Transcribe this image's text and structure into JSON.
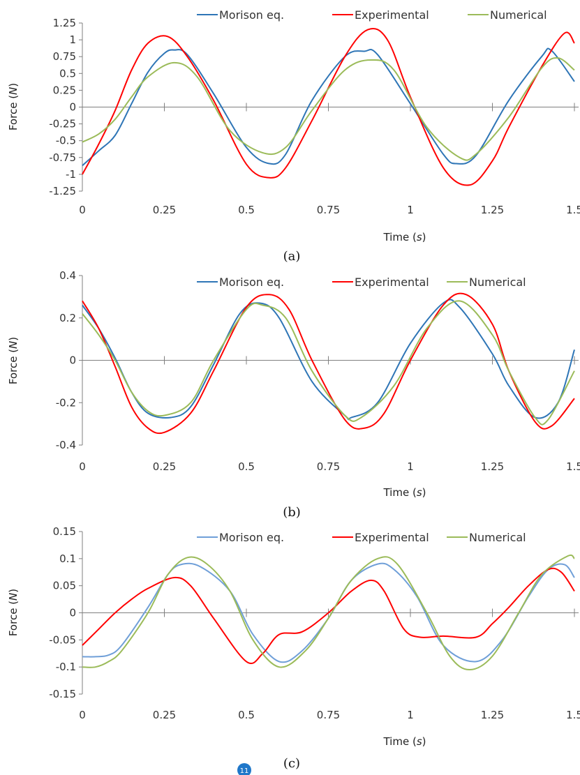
{
  "page_number": "11",
  "colors": {
    "morison": "#2e75b6",
    "experimental": "#ff0000",
    "numerical": "#9bbb59",
    "morison_light": "#6f9fd8",
    "axis": "#7f7f7f"
  },
  "chart_data": [
    {
      "type": "line",
      "caption": "(a)",
      "xlabel_main": "Time (",
      "xlabel_unit": "s",
      "xlabel_end": ")",
      "ylabel_main": "Force (",
      "ylabel_unit": "N",
      "ylabel_end": ")",
      "xlim": [
        0,
        1.5
      ],
      "ylim": [
        -1.25,
        1.25
      ],
      "legend_position": "top",
      "x_ticks": [
        "0",
        "0.25",
        "0.5",
        "0.75",
        "1",
        "1.25",
        "1.5"
      ],
      "y_ticks": [
        "1.25",
        "1",
        "0.75",
        "0.5",
        "0.25",
        "0",
        "-0.25",
        "-0.5",
        "-0.75",
        "-1",
        "-1.25"
      ],
      "series": [
        {
          "name": "Morison eq.",
          "color": "#2e75b6",
          "x": [
            0,
            0.05,
            0.1,
            0.15,
            0.2,
            0.25,
            0.28,
            0.32,
            0.4,
            0.5,
            0.57,
            0.62,
            0.7,
            0.8,
            0.86,
            0.9,
            1.0,
            1.1,
            1.14,
            1.2,
            1.3,
            1.4,
            1.43,
            1.5
          ],
          "values": [
            -0.87,
            -0.65,
            -0.42,
            0.05,
            0.52,
            0.8,
            0.85,
            0.78,
            0.2,
            -0.6,
            -0.84,
            -0.7,
            0.1,
            0.75,
            0.83,
            0.78,
            0.05,
            -0.7,
            -0.84,
            -0.72,
            0.1,
            0.75,
            0.84,
            0.38
          ]
        },
        {
          "name": "Experimental",
          "color": "#ff0000",
          "x": [
            0,
            0.05,
            0.1,
            0.15,
            0.2,
            0.26,
            0.32,
            0.4,
            0.5,
            0.57,
            0.62,
            0.7,
            0.8,
            0.87,
            0.93,
            1.0,
            1.1,
            1.18,
            1.25,
            1.3,
            1.4,
            1.47,
            1.5
          ],
          "values": [
            -1.0,
            -0.55,
            -0.05,
            0.55,
            0.95,
            1.05,
            0.75,
            0.1,
            -0.85,
            -1.05,
            -0.9,
            -0.2,
            0.75,
            1.15,
            1.0,
            0.15,
            -0.9,
            -1.16,
            -0.8,
            -0.3,
            0.6,
            1.1,
            0.95
          ]
        },
        {
          "name": "Numerical",
          "color": "#9bbb59",
          "x": [
            0,
            0.05,
            0.1,
            0.15,
            0.2,
            0.28,
            0.35,
            0.45,
            0.55,
            0.62,
            0.7,
            0.8,
            0.88,
            0.95,
            1.05,
            1.15,
            1.2,
            1.3,
            1.4,
            1.45,
            1.5
          ],
          "values": [
            -0.52,
            -0.4,
            -0.18,
            0.15,
            0.45,
            0.66,
            0.45,
            -0.35,
            -0.68,
            -0.6,
            -0.05,
            0.55,
            0.7,
            0.55,
            -0.3,
            -0.75,
            -0.7,
            -0.15,
            0.58,
            0.73,
            0.55
          ]
        }
      ]
    },
    {
      "type": "line",
      "caption": "(b)",
      "xlabel_main": "Time (",
      "xlabel_unit": "s",
      "xlabel_end": ")",
      "ylabel_main": "Force (",
      "ylabel_unit": "N",
      "ylabel_end": ")",
      "xlim": [
        0,
        1.5
      ],
      "ylim": [
        -0.4,
        0.4
      ],
      "legend_position": "top",
      "x_ticks": [
        "0",
        "0.25",
        "0.5",
        "0.75",
        "1",
        "1.25",
        "1.5"
      ],
      "y_ticks": [
        "0.4",
        "0.2",
        "0",
        "-0.2",
        "-0.4"
      ],
      "series": [
        {
          "name": "Morison eq.",
          "color": "#2e75b6",
          "x": [
            0,
            0.05,
            0.1,
            0.15,
            0.2,
            0.27,
            0.33,
            0.4,
            0.48,
            0.54,
            0.6,
            0.7,
            0.8,
            0.82,
            0.9,
            1.0,
            1.1,
            1.15,
            1.25,
            1.3,
            1.38,
            1.45,
            1.5
          ],
          "values": [
            0.26,
            0.15,
            0.01,
            -0.15,
            -0.25,
            -0.27,
            -0.22,
            -0.02,
            0.22,
            0.27,
            0.2,
            -0.1,
            -0.26,
            -0.27,
            -0.2,
            0.08,
            0.27,
            0.25,
            0.03,
            -0.12,
            -0.27,
            -0.2,
            0.05
          ]
        },
        {
          "name": "Experimental",
          "color": "#ff0000",
          "x": [
            0,
            0.05,
            0.1,
            0.15,
            0.2,
            0.25,
            0.33,
            0.4,
            0.5,
            0.57,
            0.63,
            0.7,
            0.8,
            0.86,
            0.92,
            1.0,
            1.1,
            1.17,
            1.25,
            1.3,
            1.38,
            1.43,
            1.5
          ],
          "values": [
            0.28,
            0.15,
            -0.03,
            -0.22,
            -0.32,
            -0.34,
            -0.25,
            -0.05,
            0.25,
            0.31,
            0.24,
            0.0,
            -0.28,
            -0.32,
            -0.25,
            0.0,
            0.26,
            0.31,
            0.17,
            -0.05,
            -0.29,
            -0.31,
            -0.18
          ]
        },
        {
          "name": "Numerical",
          "color": "#9bbb59",
          "x": [
            0,
            0.05,
            0.1,
            0.15,
            0.2,
            0.25,
            0.33,
            0.4,
            0.5,
            0.55,
            0.62,
            0.7,
            0.8,
            0.85,
            0.95,
            1.05,
            1.15,
            1.25,
            1.3,
            1.38,
            1.42,
            1.5
          ],
          "values": [
            0.22,
            0.12,
            0.0,
            -0.15,
            -0.24,
            -0.26,
            -0.2,
            0.0,
            0.24,
            0.26,
            0.2,
            -0.05,
            -0.26,
            -0.27,
            -0.12,
            0.15,
            0.28,
            0.12,
            -0.05,
            -0.27,
            -0.28,
            -0.05
          ]
        }
      ]
    },
    {
      "type": "line",
      "caption": "(c)",
      "xlabel_main": "Time (",
      "xlabel_unit": "s",
      "xlabel_end": ")",
      "ylabel_main": "Force (",
      "ylabel_unit": "N",
      "ylabel_end": ")",
      "xlim": [
        0,
        1.5
      ],
      "ylim": [
        -0.15,
        0.15
      ],
      "legend_position": "top",
      "x_ticks": [
        "0",
        "0.25",
        "0.5",
        "0.75",
        "1",
        "1.25",
        "1.5"
      ],
      "y_ticks": [
        "0.15",
        "0.1",
        "0.05",
        "0",
        "-0.05",
        "-0.1",
        "-0.15"
      ],
      "series": [
        {
          "name": "Morison eq.",
          "color": "#6f9fd8",
          "x": [
            0,
            0.04,
            0.08,
            0.12,
            0.2,
            0.26,
            0.3,
            0.36,
            0.45,
            0.52,
            0.6,
            0.67,
            0.75,
            0.82,
            0.9,
            0.95,
            1.02,
            1.1,
            1.2,
            1.28,
            1.36,
            1.42,
            1.47,
            1.5
          ],
          "values": [
            -0.081,
            -0.081,
            -0.078,
            -0.06,
            0.01,
            0.07,
            0.089,
            0.085,
            0.04,
            -0.04,
            -0.09,
            -0.07,
            -0.01,
            0.06,
            0.09,
            0.08,
            0.03,
            -0.06,
            -0.09,
            -0.05,
            0.03,
            0.08,
            0.089,
            0.065
          ]
        },
        {
          "name": "Experimental",
          "color": "#ff0000",
          "x": [
            0,
            0.05,
            0.1,
            0.15,
            0.2,
            0.28,
            0.33,
            0.4,
            0.5,
            0.55,
            0.6,
            0.67,
            0.75,
            0.82,
            0.88,
            0.92,
            0.98,
            1.03,
            1.1,
            1.2,
            1.25,
            1.3,
            1.36,
            1.42,
            1.46,
            1.5
          ],
          "values": [
            -0.06,
            -0.03,
            0.0,
            0.025,
            0.045,
            0.065,
            0.05,
            -0.01,
            -0.09,
            -0.075,
            -0.04,
            -0.035,
            0.0,
            0.04,
            0.06,
            0.04,
            -0.03,
            -0.045,
            -0.043,
            -0.045,
            -0.02,
            0.01,
            0.05,
            0.08,
            0.075,
            0.04
          ]
        },
        {
          "name": "Numerical",
          "color": "#9bbb59",
          "x": [
            0,
            0.04,
            0.08,
            0.12,
            0.2,
            0.26,
            0.32,
            0.38,
            0.45,
            0.52,
            0.6,
            0.68,
            0.75,
            0.82,
            0.9,
            0.96,
            1.05,
            1.12,
            1.18,
            1.25,
            1.33,
            1.4,
            1.48,
            1.5
          ],
          "values": [
            -0.1,
            -0.1,
            -0.09,
            -0.07,
            0.0,
            0.07,
            0.102,
            0.09,
            0.04,
            -0.05,
            -0.1,
            -0.07,
            -0.01,
            0.06,
            0.1,
            0.09,
            0.0,
            -0.08,
            -0.105,
            -0.08,
            0.0,
            0.07,
            0.105,
            0.1
          ]
        }
      ]
    }
  ]
}
